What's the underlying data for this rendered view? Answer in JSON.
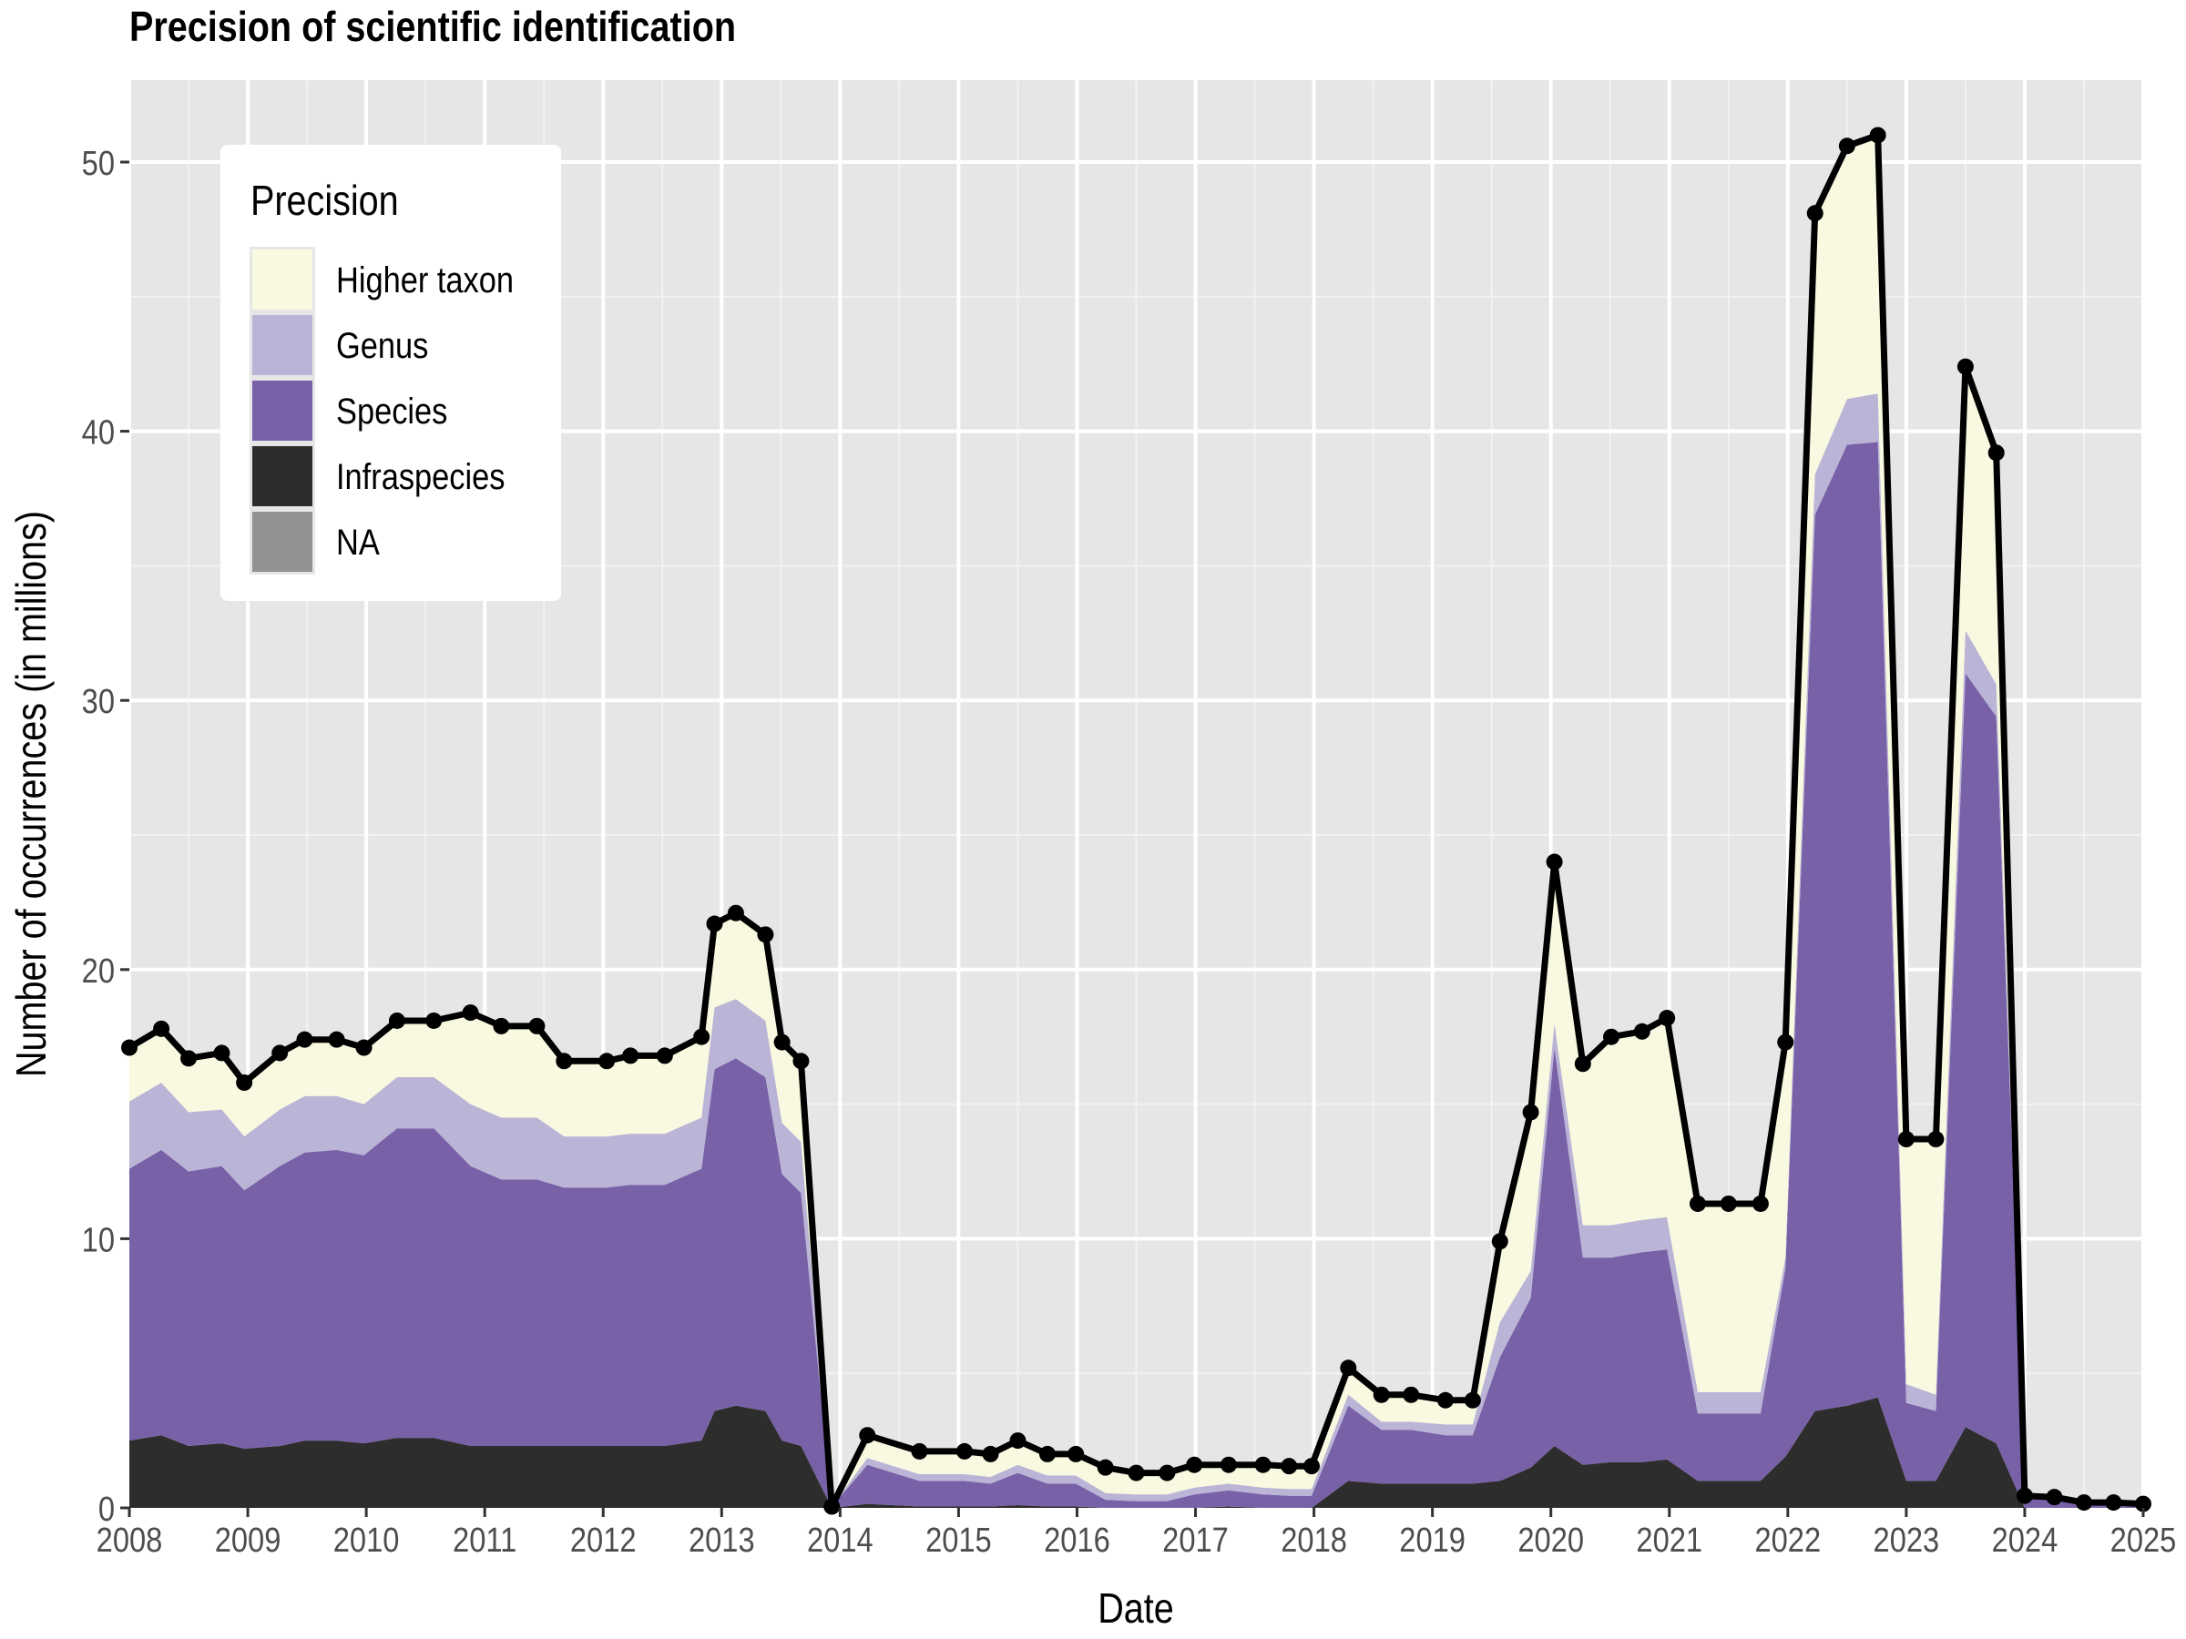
{
  "chart_data": {
    "type": "area",
    "title": "Precision of scientific identification",
    "xlabel": "Date",
    "ylabel": "Number of occurrences (in millions)",
    "xlim": [
      2008,
      2025
    ],
    "ylim": [
      0,
      53
    ],
    "x_ticks": [
      2008,
      2009,
      2010,
      2011,
      2012,
      2013,
      2014,
      2015,
      2016,
      2017,
      2018,
      2019,
      2020,
      2021,
      2022,
      2023,
      2024,
      2025
    ],
    "x_tick_labels": [
      "2008",
      "2009",
      "2010",
      "2011",
      "2012",
      "2013",
      "2014",
      "2015",
      "2016",
      "2017",
      "2018",
      "2019",
      "2020",
      "2021",
      "2022",
      "2023",
      "2024",
      "2025"
    ],
    "y_ticks": [
      0,
      10,
      20,
      30,
      40,
      50
    ],
    "y_tick_labels": [
      "0",
      "10",
      "20",
      "30",
      "40",
      "50"
    ],
    "grid": true,
    "stacked": true,
    "legend": {
      "title": "Precision",
      "position": "top-left",
      "entries": [
        {
          "label": "Higher taxon",
          "color": "#f9f9e1"
        },
        {
          "label": "Genus",
          "color": "#bab4d6"
        },
        {
          "label": "Species",
          "color": "#7961a8"
        },
        {
          "label": "Infraspecies",
          "color": "#2d2d2d"
        },
        {
          "label": "NA",
          "color": "#929292"
        }
      ]
    },
    "colors": {
      "panel_background": "#e6e6e6",
      "grid": "#ffffff",
      "total_line": "#000000"
    },
    "x": [
      2008.0,
      2008.27,
      2008.5,
      2008.78,
      2008.97,
      2009.27,
      2009.48,
      2009.75,
      2009.98,
      2010.26,
      2010.57,
      2010.88,
      2011.14,
      2011.44,
      2011.67,
      2012.03,
      2012.23,
      2012.52,
      2012.83,
      2012.94,
      2013.12,
      2013.37,
      2013.51,
      2013.67,
      2013.93,
      2014.23,
      2014.67,
      2015.05,
      2015.27,
      2015.5,
      2015.75,
      2015.99,
      2016.24,
      2016.5,
      2016.76,
      2016.99,
      2017.28,
      2017.57,
      2017.79,
      2017.98,
      2018.29,
      2018.57,
      2018.82,
      2019.11,
      2019.34,
      2019.57,
      2019.83,
      2020.03,
      2020.27,
      2020.51,
      2020.77,
      2020.98,
      2021.24,
      2021.5,
      2021.77,
      2021.98,
      2022.23,
      2022.5,
      2022.76,
      2023.0,
      2023.25,
      2023.5,
      2023.76,
      2024.0,
      2024.25,
      2024.5,
      2024.75,
      2025.0
    ],
    "series": [
      {
        "name": "Infraspecies",
        "values": [
          2.5,
          2.7,
          2.3,
          2.4,
          2.2,
          2.3,
          2.5,
          2.5,
          2.4,
          2.6,
          2.6,
          2.3,
          2.3,
          2.3,
          2.3,
          2.3,
          2.3,
          2.3,
          2.5,
          3.6,
          3.8,
          3.6,
          2.5,
          2.3,
          0.0,
          0.15,
          0.05,
          0.05,
          0.05,
          0.1,
          0.05,
          0.05,
          0.0,
          0.0,
          0.0,
          0.0,
          0.05,
          0.0,
          0.0,
          0.0,
          1.0,
          0.9,
          0.9,
          0.9,
          0.9,
          1.0,
          1.5,
          2.3,
          1.6,
          1.7,
          1.7,
          1.8,
          1.0,
          1.0,
          1.0,
          1.9,
          3.6,
          3.8,
          4.1,
          1.0,
          1.0,
          3.0,
          2.4,
          0.0,
          0.0,
          0.0,
          0.0,
          0.0
        ]
      },
      {
        "name": "Species",
        "values": [
          10.1,
          10.6,
          10.2,
          10.3,
          9.6,
          10.4,
          10.7,
          10.8,
          10.7,
          11.5,
          11.5,
          10.4,
          9.9,
          9.9,
          9.6,
          9.6,
          9.7,
          9.7,
          10.1,
          12.7,
          12.9,
          12.4,
          9.9,
          9.4,
          0.05,
          1.45,
          0.95,
          0.95,
          0.85,
          1.2,
          0.85,
          0.85,
          0.3,
          0.25,
          0.25,
          0.5,
          0.6,
          0.5,
          0.45,
          0.45,
          2.8,
          2.0,
          2.0,
          1.8,
          1.8,
          4.6,
          6.3,
          14.8,
          7.7,
          7.6,
          7.8,
          7.8,
          2.5,
          2.5,
          2.5,
          7.0,
          33.3,
          35.7,
          35.5,
          2.9,
          2.6,
          28.0,
          27.0,
          0.4,
          0.3,
          0.15,
          0.15,
          0.1
        ]
      },
      {
        "name": "Genus",
        "values": [
          2.5,
          2.5,
          2.2,
          2.1,
          2.0,
          2.1,
          2.1,
          2.0,
          1.9,
          1.9,
          1.9,
          2.3,
          2.3,
          2.3,
          1.9,
          1.9,
          1.9,
          1.9,
          1.9,
          2.3,
          2.2,
          2.1,
          1.9,
          1.9,
          0.0,
          0.25,
          0.25,
          0.25,
          0.25,
          0.3,
          0.3,
          0.3,
          0.25,
          0.25,
          0.25,
          0.25,
          0.25,
          0.25,
          0.25,
          0.25,
          0.4,
          0.3,
          0.3,
          0.4,
          0.4,
          1.3,
          1.0,
          0.9,
          1.2,
          1.2,
          1.2,
          1.2,
          0.8,
          0.8,
          0.8,
          0.4,
          1.5,
          1.7,
          1.8,
          0.7,
          0.6,
          1.6,
          1.2,
          0.0,
          0.0,
          0.0,
          0.0,
          0.0
        ]
      },
      {
        "name": "Higher taxon",
        "values": [
          2.0,
          2.0,
          2.0,
          2.1,
          2.0,
          2.1,
          2.1,
          2.1,
          2.1,
          2.1,
          2.1,
          3.4,
          3.4,
          3.4,
          2.8,
          2.8,
          2.9,
          2.9,
          3.0,
          3.1,
          3.2,
          3.2,
          3.0,
          3.0,
          0.0,
          0.85,
          0.85,
          0.85,
          0.85,
          0.9,
          0.8,
          0.8,
          0.95,
          0.8,
          0.8,
          0.85,
          0.7,
          0.85,
          0.85,
          0.85,
          1.0,
          1.0,
          1.0,
          0.9,
          0.9,
          3.0,
          5.9,
          6.0,
          6.0,
          7.0,
          7.0,
          7.4,
          7.0,
          7.0,
          7.0,
          8.0,
          9.7,
          9.4,
          9.6,
          9.1,
          9.5,
          9.8,
          8.6,
          0.05,
          0.1,
          0.05,
          0.05,
          0.05
        ]
      },
      {
        "name": "NA",
        "values": [
          0,
          0,
          0,
          0,
          0,
          0,
          0,
          0,
          0,
          0,
          0,
          0,
          0,
          0,
          0,
          0,
          0,
          0,
          0,
          0,
          0,
          0,
          0,
          0,
          0,
          0,
          0,
          0,
          0,
          0,
          0,
          0,
          0,
          0,
          0,
          0,
          0,
          0,
          0,
          0,
          0,
          0,
          0,
          0,
          0,
          0,
          0,
          0,
          0,
          0,
          0,
          0,
          0,
          0,
          0,
          0,
          0,
          0,
          0,
          0,
          0,
          0,
          0,
          0,
          0,
          0,
          0,
          0
        ]
      }
    ],
    "total": [
      17.1,
      17.8,
      16.7,
      16.9,
      15.8,
      16.9,
      17.4,
      17.4,
      17.1,
      18.1,
      18.1,
      18.4,
      17.9,
      17.9,
      16.6,
      16.6,
      16.8,
      16.8,
      17.5,
      21.7,
      22.1,
      21.3,
      17.3,
      16.6,
      0.05,
      2.7,
      2.1,
      2.1,
      2.0,
      2.5,
      2.0,
      2.0,
      1.5,
      1.3,
      1.3,
      1.6,
      1.6,
      1.6,
      1.55,
      1.55,
      5.2,
      4.2,
      4.2,
      4.0,
      4.0,
      9.9,
      14.7,
      24.0,
      16.5,
      17.5,
      17.7,
      18.2,
      11.3,
      11.3,
      11.3,
      17.3,
      48.1,
      50.6,
      51.0,
      13.7,
      13.7,
      42.4,
      39.2,
      0.45,
      0.4,
      0.2,
      0.2,
      0.15
    ]
  }
}
